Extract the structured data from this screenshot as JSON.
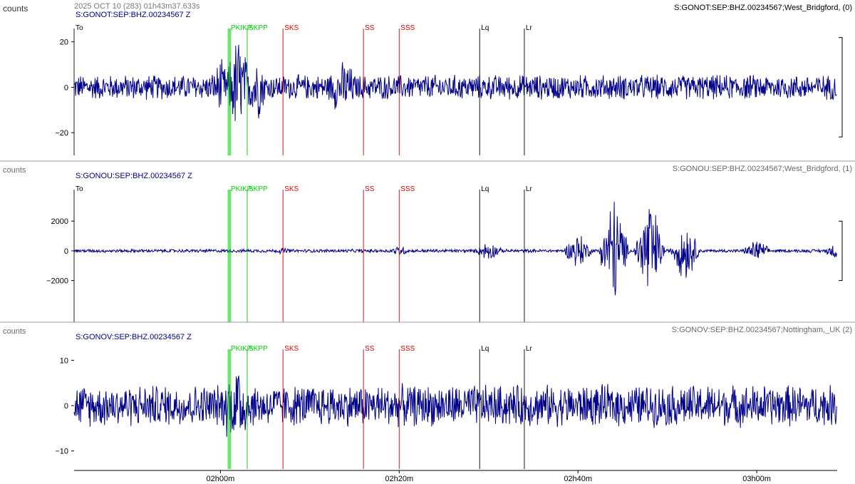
{
  "header": {
    "date_text": "2025 OCT 10 (283)  01h43m37.633s",
    "units_label": "counts"
  },
  "colors": {
    "trace": "#00008b",
    "origin": "#000000",
    "p_phase": "#00cc00",
    "s_phase": "#dd0000",
    "surface": "#000000"
  },
  "chart_data": {
    "type": "line",
    "xlabel": "",
    "ylabel": "counts",
    "x_range": [
      "01h43m37.633s",
      "03h09m"
    ],
    "x_ticks": [
      "02h00m",
      "02h20m",
      "02h40m",
      "03h00m"
    ],
    "panels": [
      {
        "channel": "S:GONOT:SEP:BHZ.00234567 Z",
        "trace_label": "S:GONOT:SEP:BHZ.00234567;West_Bridgford, (0)",
        "units": "counts",
        "ylim": [
          -30,
          29
        ],
        "y_ticks": [
          20,
          0,
          -20
        ],
        "noise_amp": 6,
        "envelope": [
          {
            "t": "02h00m",
            "amp": 14
          },
          {
            "t": "02h02m",
            "amp": 28
          },
          {
            "t": "02h04m",
            "amp": 18
          },
          {
            "t": "02h13m",
            "amp": 12
          },
          {
            "t": "02h14m",
            "amp": 15
          }
        ],
        "phases": [
          {
            "label": "To",
            "t": "01h43m37.633s",
            "kind": "origin"
          },
          {
            "label": "PKIKP",
            "t": "02h01m",
            "kind": "p"
          },
          {
            "label": "SKPP",
            "t": "02h03m",
            "kind": "p"
          },
          {
            "label": "SKS",
            "t": "02h07m",
            "kind": "s"
          },
          {
            "label": "SS",
            "t": "02h16m",
            "kind": "s"
          },
          {
            "label": "SSS",
            "t": "02h20m",
            "kind": "s"
          },
          {
            "label": "Lq",
            "t": "02h29m",
            "kind": "surface"
          },
          {
            "label": "Lr",
            "t": "02h34m",
            "kind": "surface"
          }
        ]
      },
      {
        "channel": "S:GONOU:SEP:BHZ.00234567 Z",
        "trace_label": "S:GONOU:SEP:BHZ.00234567;West_Bridgford, (1)",
        "units": "counts",
        "ylim": [
          -4800,
          4600
        ],
        "y_ticks": [
          2000,
          0,
          -2000
        ],
        "noise_amp": 120,
        "envelope": [
          {
            "t": "02h07m",
            "amp": 250
          },
          {
            "t": "02h20m",
            "amp": 400
          },
          {
            "t": "02h30m",
            "amp": 800
          },
          {
            "t": "02h40m",
            "amp": 1500
          },
          {
            "t": "02h44m",
            "amp": 4500
          },
          {
            "t": "02h48m",
            "amp": 4500
          },
          {
            "t": "02h52m",
            "amp": 2500
          },
          {
            "t": "03h00m",
            "amp": 900
          },
          {
            "t": "03h09m",
            "amp": 700
          }
        ],
        "phases": [
          {
            "label": "To",
            "t": "01h43m37.633s",
            "kind": "origin"
          },
          {
            "label": "PKIKP",
            "t": "02h01m",
            "kind": "p"
          },
          {
            "label": "SKPP",
            "t": "02h03m",
            "kind": "p"
          },
          {
            "label": "SKS",
            "t": "02h07m",
            "kind": "s"
          },
          {
            "label": "SS",
            "t": "02h16m",
            "kind": "s"
          },
          {
            "label": "SSS",
            "t": "02h20m",
            "kind": "s"
          },
          {
            "label": "Lq",
            "t": "02h29m",
            "kind": "surface"
          },
          {
            "label": "Lr",
            "t": "02h34m",
            "kind": "surface"
          }
        ]
      },
      {
        "channel": "S:GONOV:SEP:BHZ.00234567 Z",
        "trace_label": "S:GONOV:SEP:BHZ.00234567;Nottingham,_UK (2)",
        "units": "counts",
        "ylim": [
          -14,
          14
        ],
        "y_ticks": [
          10,
          0,
          -10
        ],
        "noise_amp": 5,
        "envelope": [
          {
            "t": "02h01m",
            "amp": 9
          },
          {
            "t": "02h02m",
            "amp": 12
          },
          {
            "t": "02h03m",
            "amp": 8
          }
        ],
        "phases": [
          {
            "label": "PKIKP",
            "t": "02h01m",
            "kind": "p"
          },
          {
            "label": "SKPP",
            "t": "02h03m",
            "kind": "p"
          },
          {
            "label": "SKS",
            "t": "02h07m",
            "kind": "s"
          },
          {
            "label": "SS",
            "t": "02h16m",
            "kind": "s"
          },
          {
            "label": "SSS",
            "t": "02h20m",
            "kind": "s"
          },
          {
            "label": "Lq",
            "t": "02h29m",
            "kind": "surface"
          },
          {
            "label": "Lr",
            "t": "02h34m",
            "kind": "surface"
          }
        ]
      }
    ]
  }
}
